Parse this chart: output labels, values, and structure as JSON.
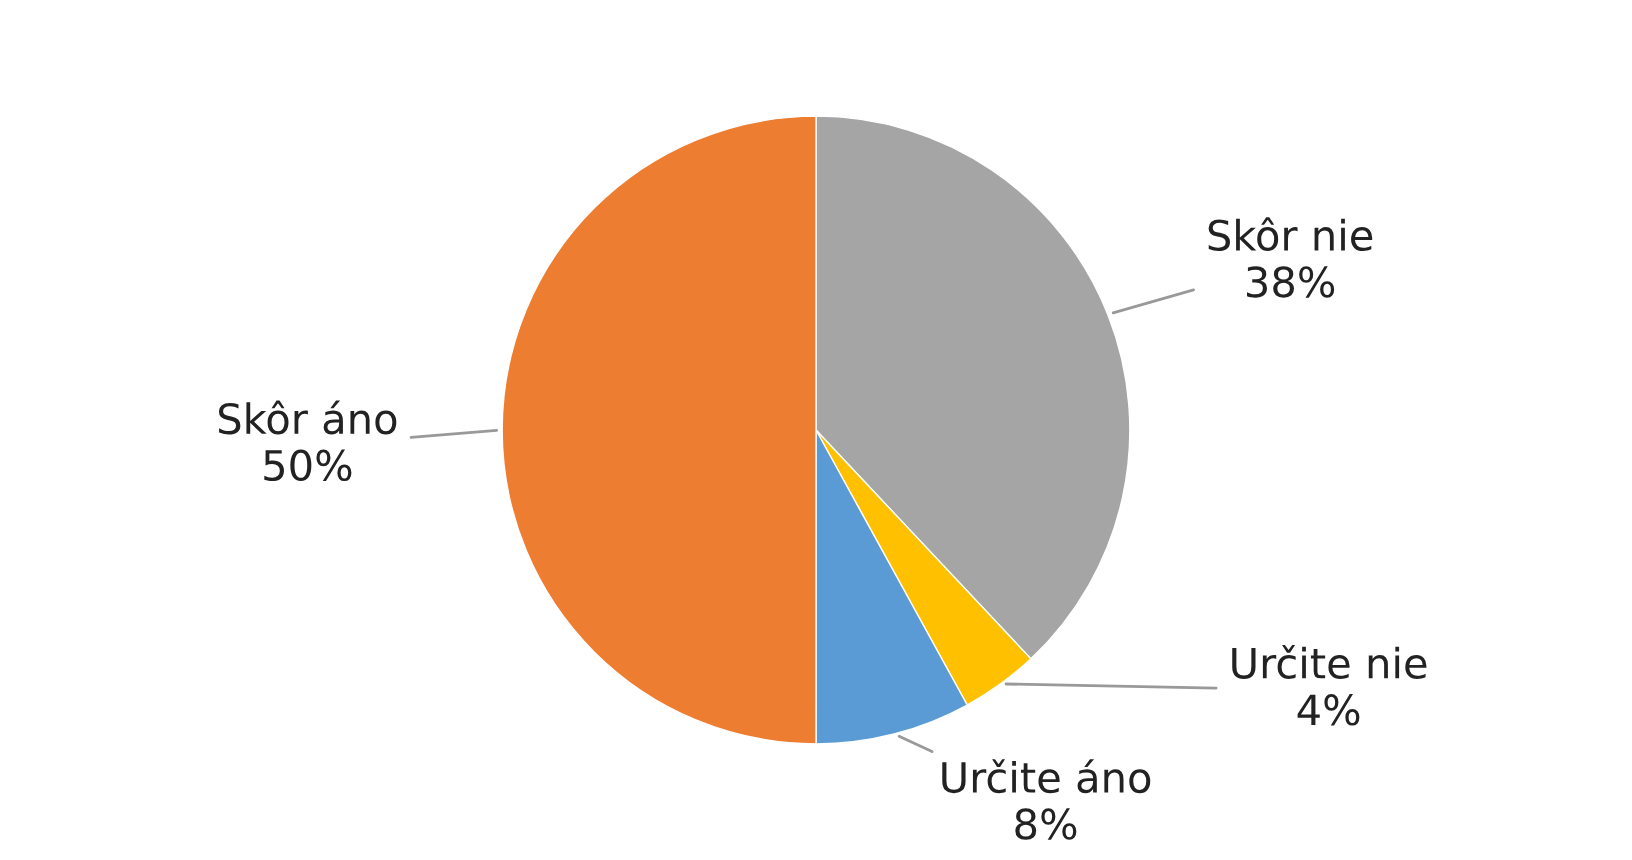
{
  "chart_data": {
    "type": "pie",
    "categories": [
      "Skôr nie",
      "Určite nie",
      "Určite áno",
      "Skôr áno"
    ],
    "values": [
      38,
      4,
      8,
      50
    ],
    "value_labels": [
      "38%",
      "4%",
      "8%",
      "50%"
    ],
    "colors": [
      "#a5a5a5",
      "#ffc000",
      "#5b9bd5",
      "#ed7d31"
    ],
    "legend": false
  }
}
